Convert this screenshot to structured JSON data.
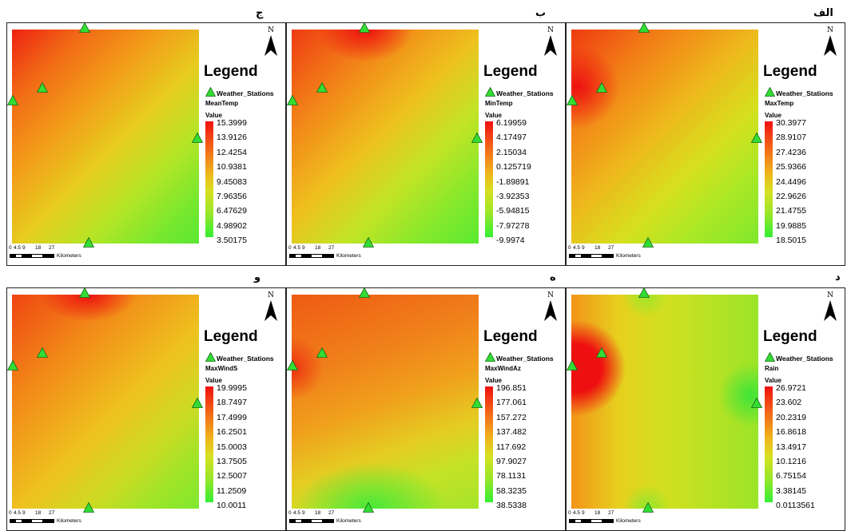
{
  "legend_title": "Legend",
  "station_layer_label": "Weather_Stations",
  "value_heading": "Value",
  "scale_bar": {
    "ticks": [
      "0",
      "4.5",
      "9",
      "18",
      "27"
    ],
    "unit": "Kilometers"
  },
  "north_label": "N",
  "colors": {
    "ramp_high": "#f01010",
    "ramp_mid": "#d8e020",
    "ramp_low": "#33ee33",
    "station_marker": "#33dd33"
  },
  "panels": [
    {
      "label": "الف",
      "layer": "MaxTemp",
      "values": [
        "30.3977",
        "28.9107",
        "27.4236",
        "25.9366",
        "24.4496",
        "22.9626",
        "21.4755",
        "19.9885",
        "18.5015"
      ]
    },
    {
      "label": "ب",
      "layer": "MinTemp",
      "values": [
        "6.19959",
        "4.17497",
        "2.15034",
        "0.125719",
        "-1.89891",
        "-3.92353",
        "-5.94815",
        "-7.97278",
        "-9.9974"
      ]
    },
    {
      "label": "ج",
      "layer": "MeanTemp",
      "values": [
        "15.3999",
        "13.9126",
        "12.4254",
        "10.9381",
        "9.45083",
        "7.96356",
        "6.47629",
        "4.98902",
        "3.50175"
      ]
    },
    {
      "label": "د",
      "layer": "Rain",
      "values": [
        "26.9721",
        "23.602",
        "20.2319",
        "16.8618",
        "13.4917",
        "10.1216",
        "6.75154",
        "3.38145",
        "0.0113561"
      ]
    },
    {
      "label": "ه",
      "layer": "MaxWindAz",
      "values": [
        "196.851",
        "177.061",
        "157.272",
        "137.482",
        "117.692",
        "97.9027",
        "78.1131",
        "58.3235",
        "38.5338"
      ]
    },
    {
      "label": "و",
      "layer": "MaxWindS",
      "values": [
        "19.9995",
        "18.7497",
        "17.4999",
        "16.2501",
        "15.0003",
        "13.7505",
        "12.5007",
        "11.2509",
        "10.0011"
      ]
    }
  ]
}
